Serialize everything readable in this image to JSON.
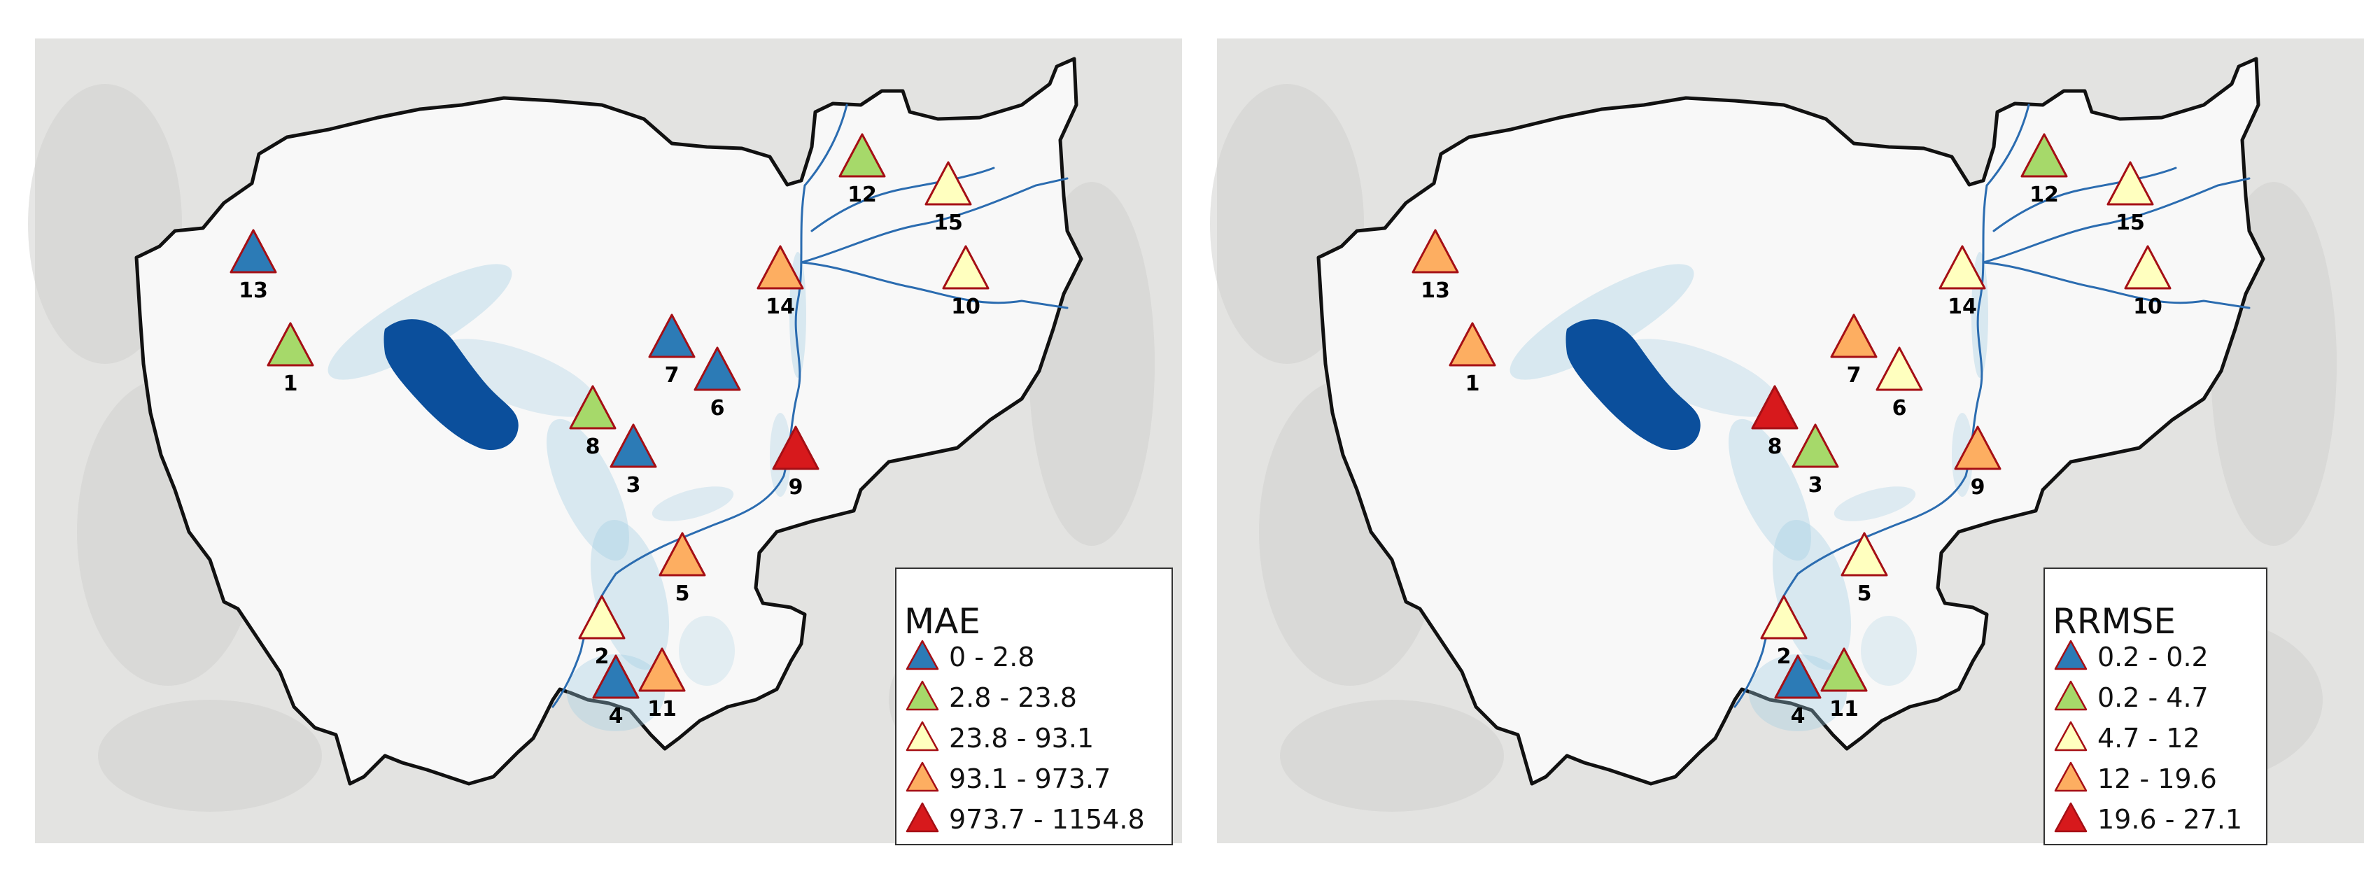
{
  "panels": [
    {
      "legend": {
        "title": "MAE",
        "classes": [
          {
            "label": "0 - 2.8",
            "color": "#2c7bb6"
          },
          {
            "label": "2.8 - 23.8",
            "color": "#a6d96a"
          },
          {
            "label": "23.8 - 93.1",
            "color": "#ffffbf"
          },
          {
            "label": "93.1 - 973.7",
            "color": "#fdae61"
          },
          {
            "label": "973.7 - 1154.8",
            "color": "#d7191c"
          }
        ]
      },
      "stations": [
        {
          "id": "1",
          "class": 1
        },
        {
          "id": "2",
          "class": 2
        },
        {
          "id": "3",
          "class": 0
        },
        {
          "id": "4",
          "class": 0
        },
        {
          "id": "5",
          "class": 3
        },
        {
          "id": "6",
          "class": 0
        },
        {
          "id": "7",
          "class": 0
        },
        {
          "id": "8",
          "class": 1
        },
        {
          "id": "9",
          "class": 4
        },
        {
          "id": "10",
          "class": 2
        },
        {
          "id": "11",
          "class": 3
        },
        {
          "id": "12",
          "class": 1
        },
        {
          "id": "13",
          "class": 0
        },
        {
          "id": "14",
          "class": 3
        },
        {
          "id": "15",
          "class": 2
        }
      ]
    },
    {
      "legend": {
        "title": "RRMSE",
        "classes": [
          {
            "label": "0.2 - 0.2",
            "color": "#2c7bb6"
          },
          {
            "label": "0.2 - 4.7",
            "color": "#a6d96a"
          },
          {
            "label": "4.7 - 12",
            "color": "#ffffbf"
          },
          {
            "label": "12 - 19.6",
            "color": "#fdae61"
          },
          {
            "label": "19.6 - 27.1",
            "color": "#d7191c"
          }
        ]
      },
      "stations": [
        {
          "id": "1",
          "class": 3
        },
        {
          "id": "2",
          "class": 2
        },
        {
          "id": "3",
          "class": 1
        },
        {
          "id": "4",
          "class": 0
        },
        {
          "id": "5",
          "class": 2
        },
        {
          "id": "6",
          "class": 2
        },
        {
          "id": "7",
          "class": 3
        },
        {
          "id": "8",
          "class": 4
        },
        {
          "id": "9",
          "class": 3
        },
        {
          "id": "10",
          "class": 2
        },
        {
          "id": "11",
          "class": 1
        },
        {
          "id": "12",
          "class": 1
        },
        {
          "id": "13",
          "class": 3
        },
        {
          "id": "14",
          "class": 2
        },
        {
          "id": "15",
          "class": 2
        }
      ]
    }
  ]
}
